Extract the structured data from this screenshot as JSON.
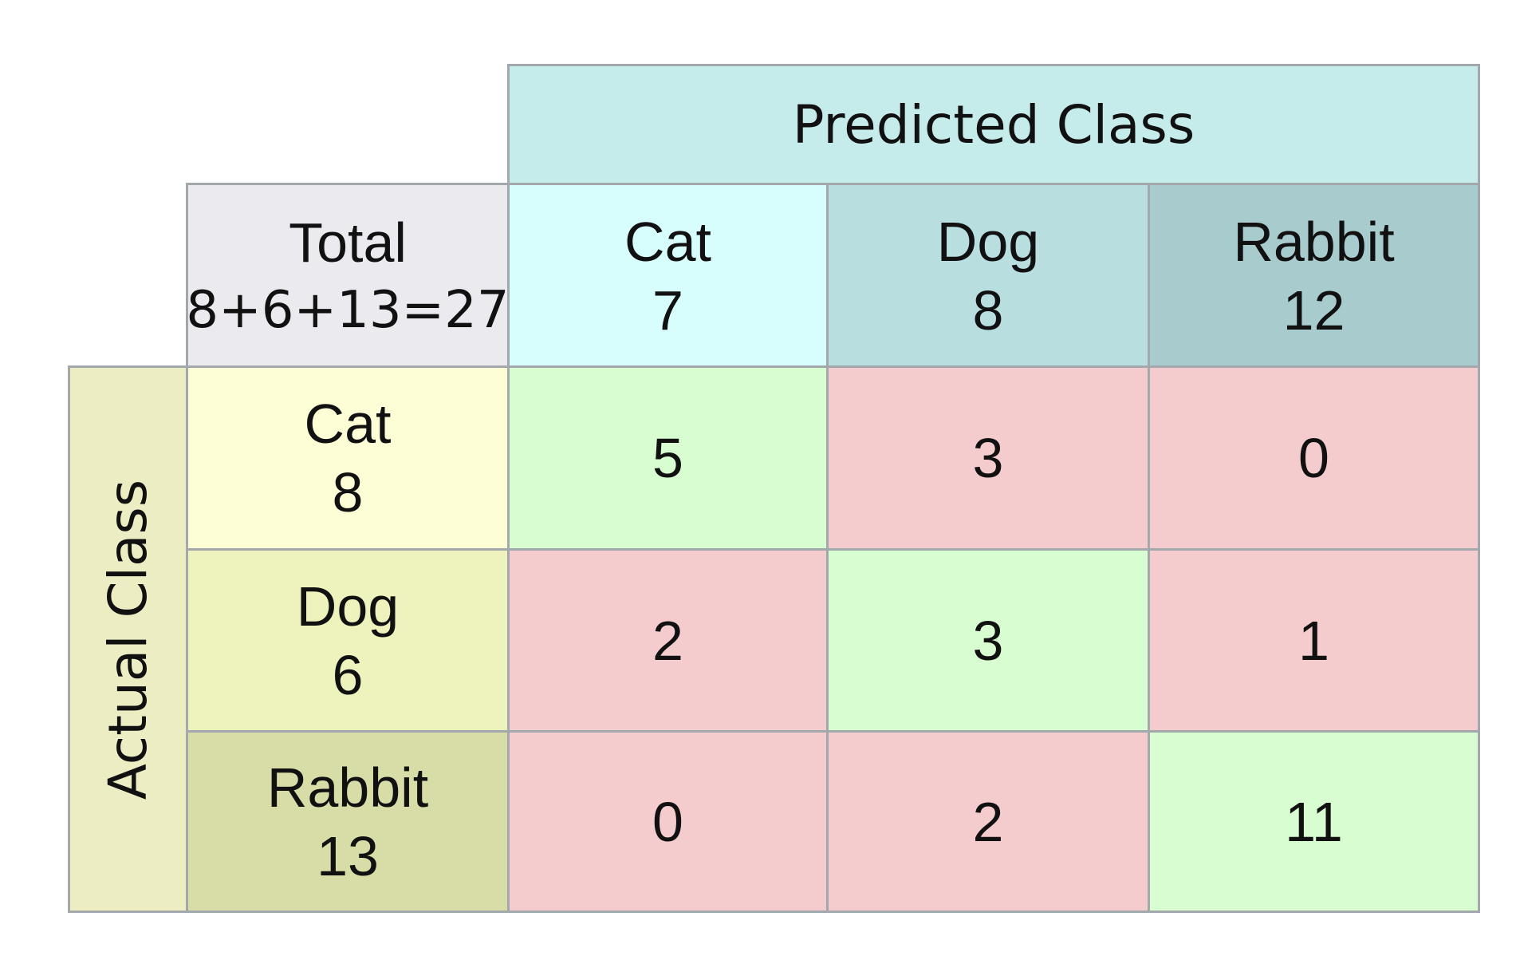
{
  "chart_data": {
    "type": "table",
    "title": "",
    "predicted_title": "Predicted Class",
    "actual_title": "Actual Class",
    "total_label": "Total",
    "total_formula": "8+6+13=27",
    "predicted": [
      {
        "label": "Cat",
        "total": "7"
      },
      {
        "label": "Dog",
        "total": "8"
      },
      {
        "label": "Rabbit",
        "total": "12"
      }
    ],
    "actual": [
      {
        "label": "Cat",
        "total": "8"
      },
      {
        "label": "Dog",
        "total": "6"
      },
      {
        "label": "Rabbit",
        "total": "13"
      }
    ],
    "matrix": [
      [
        5,
        3,
        0
      ],
      [
        2,
        3,
        1
      ],
      [
        0,
        2,
        11
      ]
    ]
  },
  "colors": {
    "predicted_title_bg": "#c5eceb",
    "predicted_header_bg": [
      "#d8fdfd",
      "#b8dedf",
      "#a8cccd"
    ],
    "actual_title_bg": "#ededc3",
    "actual_header_bg": [
      "#fdfdd6",
      "#eef3be",
      "#d8dda8"
    ],
    "total_bg": "#ebebef",
    "correct_bg": "#d8fdd0",
    "incorrect_bg": "#f5cccd",
    "border": "#a3a8ad"
  }
}
